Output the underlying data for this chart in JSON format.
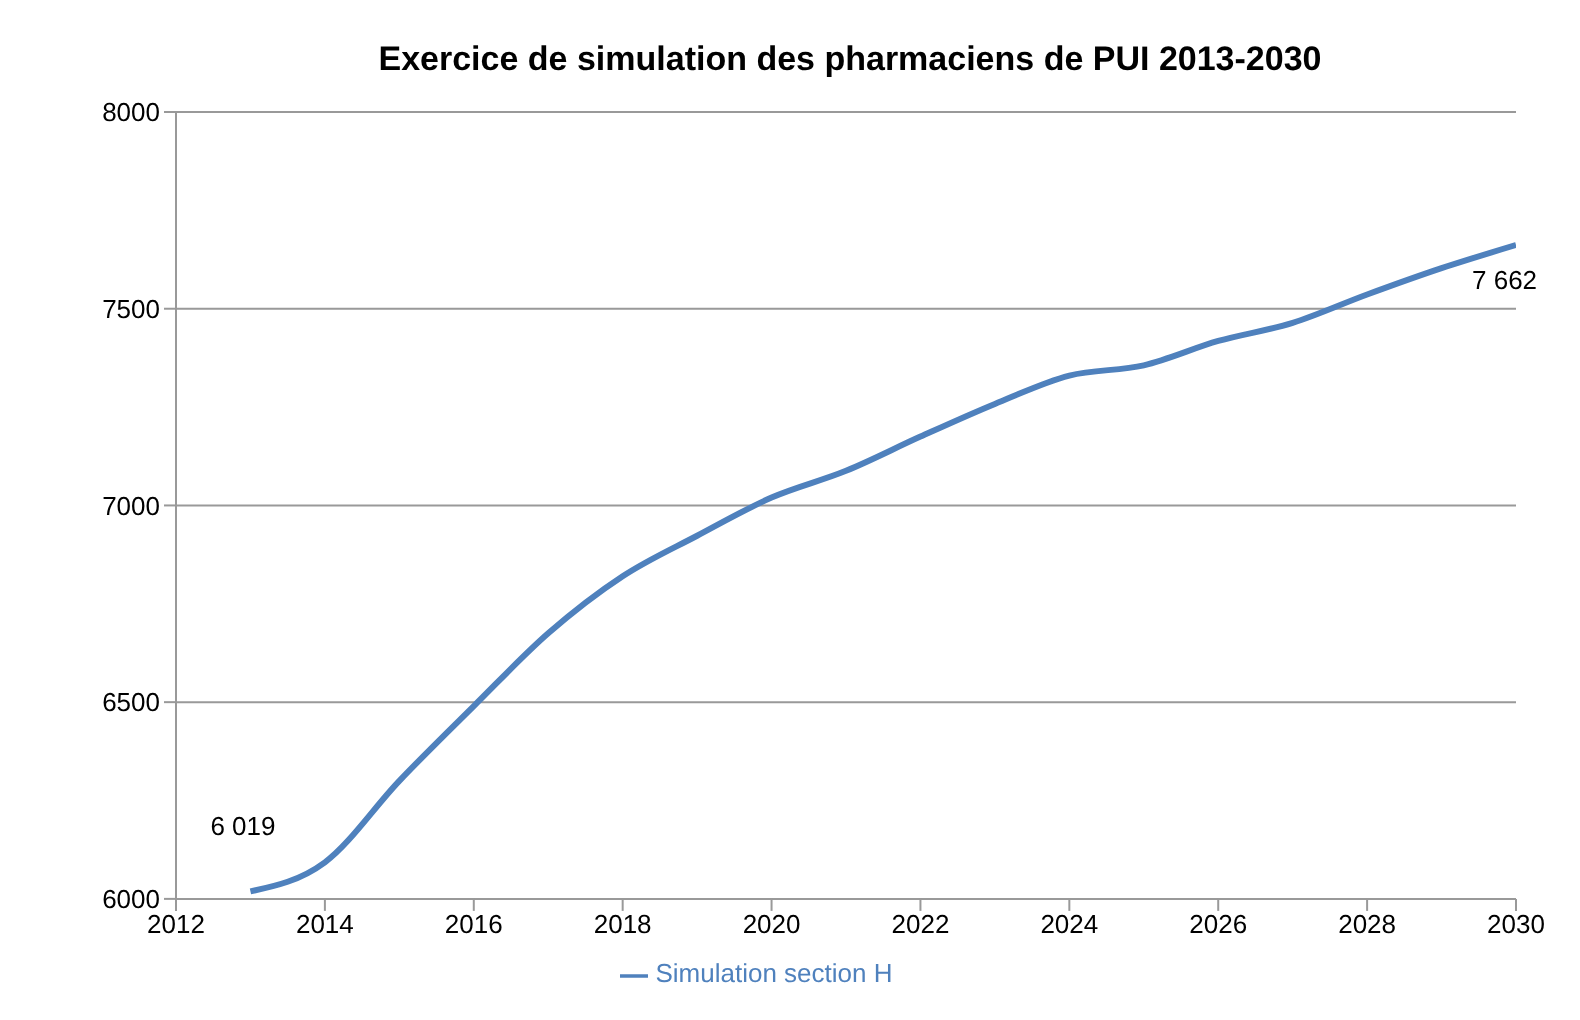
{
  "chart_data": {
    "type": "line",
    "title": "Exercice de simulation des pharmaciens de PUI 2013-2030",
    "x": [
      2013,
      2014,
      2015,
      2016,
      2017,
      2018,
      2019,
      2020,
      2021,
      2022,
      2023,
      2024,
      2025,
      2026,
      2027,
      2028,
      2029,
      2030
    ],
    "series": [
      {
        "name": "Simulation section H",
        "color": "#4f81bd",
        "values": [
          6019,
          6093,
          6300,
          6490,
          6675,
          6820,
          6923,
          7020,
          7088,
          7175,
          7258,
          7330,
          7356,
          7418,
          7464,
          7536,
          7603,
          7662
        ],
        "value_labels": [
          "6 019",
          null,
          null,
          null,
          null,
          null,
          null,
          null,
          null,
          null,
          null,
          null,
          null,
          null,
          null,
          null,
          null,
          "7 662"
        ]
      }
    ],
    "xlim": [
      2012,
      2030
    ],
    "xticks": [
      2012,
      2014,
      2016,
      2018,
      2020,
      2022,
      2024,
      2026,
      2028,
      2030
    ],
    "ylim": [
      6000,
      8000
    ],
    "yticks": [
      6000,
      6500,
      7000,
      7500,
      8000
    ],
    "grid": "y",
    "legend": "bottom",
    "marker": "none",
    "line_style": "solid"
  }
}
